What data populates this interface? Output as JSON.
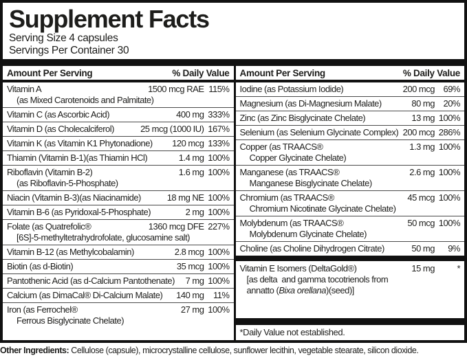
{
  "colors": {
    "text": "#1d1d1b",
    "background": "#ffffff",
    "bars": "#111111"
  },
  "title": "Supplement Facts",
  "serving": {
    "size": "Serving Size 4 capsules",
    "per_container": "Servings Per Container 30"
  },
  "table": {
    "header": {
      "amount": "Amount Per Serving",
      "dv": "% Daily Value"
    },
    "left_rows": [
      {
        "name": "Vitamin A",
        "amount": "1500 mcg RAE",
        "dv": "115%",
        "sub": "(as Mixed Carotenoids and Palmitate)"
      },
      {
        "name": "Vitamin C (as Ascorbic Acid)",
        "amount": "400 mg",
        "dv": "333%"
      },
      {
        "name": "Vitamin D (as Cholecalciferol)",
        "amount": "25 mcg (1000 IU)",
        "dv": "167%"
      },
      {
        "name": "Vitamin K (as Vitamin K1 Phytonadione)",
        "amount": "120 mcg",
        "dv": "133%"
      },
      {
        "name": "Thiamin (Vitamin B-1)(as Thiamin HCl)",
        "amount": "1.4 mg",
        "dv": "100%"
      },
      {
        "name": "Riboflavin (Vitamin B-2)",
        "amount": "1.6 mg",
        "dv": "100%",
        "sub": "(as Riboflavin-5-Phosphate)"
      },
      {
        "name": "Niacin (Vitamin B-3)(as Niacinamide)",
        "amount": "18 mg NE",
        "dv": "100%"
      },
      {
        "name": "Vitamin B-6 (as Pyridoxal-5-Phosphate)",
        "amount": "2 mg",
        "dv": "100%"
      },
      {
        "name": "Folate (as Quatrefolic®",
        "amount": "1360 mcg DFE",
        "dv": "227%",
        "sub": "[6S]-5-methyltetrahydrofolate, glucosamine salt)"
      },
      {
        "name": "Vitamin B-12 (as Methylcobalamin)",
        "amount": "2.8 mcg",
        "dv": "100%"
      },
      {
        "name": "Biotin (as d-Biotin)",
        "amount": "35 mcg",
        "dv": "100%"
      },
      {
        "name": "Pantothenic Acid (as d-Calcium Pantothenate)",
        "amount": "7 mg",
        "dv": "100%"
      },
      {
        "name": "Calcium (as DimaCal® Di-Calcium Malate)",
        "amount": "140 mg",
        "dv": "11%"
      },
      {
        "name": "Iron (as Ferrochel®",
        "amount": "27 mg",
        "dv": "100%",
        "sub": "Ferrous Bisglycinate Chelate)"
      }
    ],
    "right_rows": [
      {
        "name": "Iodine (as Potassium Iodide)",
        "amount": "200 mcg",
        "dv": "69%"
      },
      {
        "name": "Magnesium (as Di-Magnesium Malate)",
        "amount": "80 mg",
        "dv": "20%"
      },
      {
        "name": "Zinc (as Zinc Bisglycinate Chelate)",
        "amount": "13 mg",
        "dv": "100%"
      },
      {
        "name": "Selenium (as Selenium Glycinate Complex)",
        "amount": "200 mcg",
        "dv": "286%"
      },
      {
        "name": "Copper (as TRAACS®",
        "amount": "1.3 mg",
        "dv": "100%",
        "sub": "Copper Glycinate Chelate)"
      },
      {
        "name": "Manganese (as TRAACS®",
        "amount": "2.6 mg",
        "dv": "100%",
        "sub": "Manganese Bisglycinate Chelate)"
      },
      {
        "name": "Chromium (as TRAACS®",
        "amount": "45 mcg",
        "dv": "100%",
        "sub": "Chromium Nicotinate Glycinate Chelate)"
      },
      {
        "name": "Molybdenum (as TRAACS®",
        "amount": "50 mcg",
        "dv": "100%",
        "sub": "Molybdenum Glycinate Chelate)"
      },
      {
        "name": "Choline (as Choline Dihydrogen Citrate)",
        "amount": "50 mg",
        "dv": "9%"
      }
    ],
    "vitamin_e": {
      "name": "Vitamin E Isomers (DeltaGold®)",
      "amount": "15 mg",
      "dv": "*",
      "sub1": "[as delta  and gamma tocotrienols from",
      "sub2_prefix": "annatto (",
      "sub2_italic": "Bixa orellana",
      "sub2_suffix": ")(seed)]"
    },
    "footnote": "*Daily Value not established."
  },
  "other_ingredients": {
    "label": "Other Ingredients:",
    "text": " Cellulose (capsule), microcrystalline cellulose, sunflower lecithin, vegetable stearate, silicon dioxide."
  }
}
